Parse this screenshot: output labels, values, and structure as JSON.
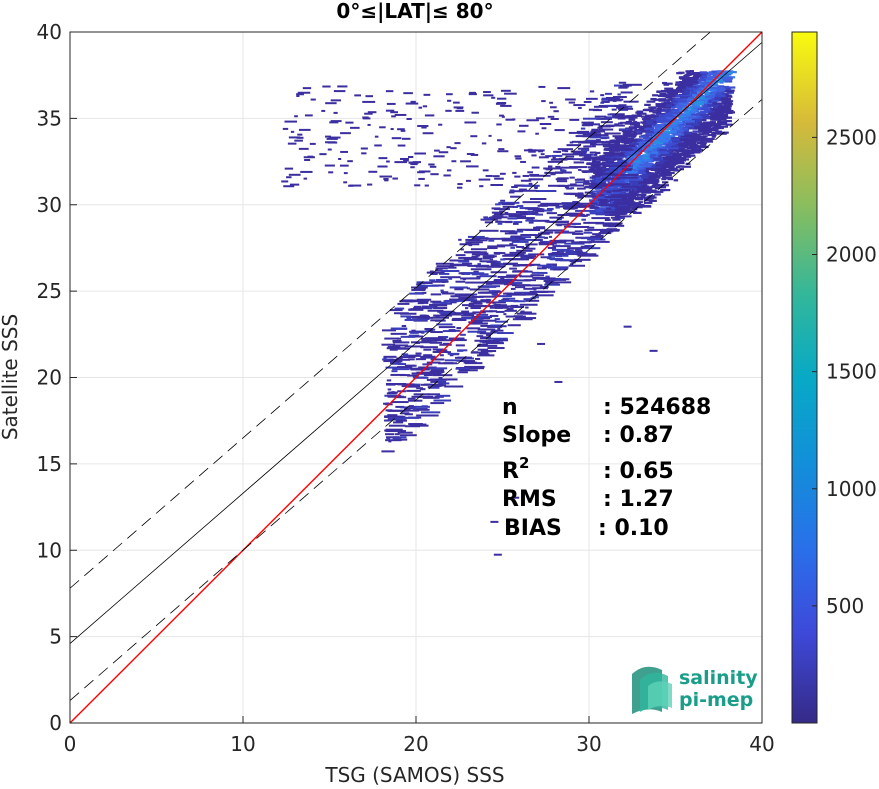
{
  "chart_data": {
    "type": "heatmap",
    "title": "0°≤|LAT|≤ 80°",
    "xlabel": "TSG (SAMOS) SSS",
    "ylabel": "Satellite SSS",
    "xlim": [
      0,
      40
    ],
    "ylim": [
      0,
      40
    ],
    "xticks": [
      0,
      10,
      20,
      30,
      40
    ],
    "yticks": [
      0,
      5,
      10,
      15,
      20,
      25,
      30,
      35,
      40
    ],
    "grid": true,
    "colorbar": {
      "range": [
        0,
        2950
      ],
      "ticks": [
        500,
        1000,
        1500,
        2000,
        2500
      ],
      "colormap": "parula"
    },
    "lines": [
      {
        "name": "identity",
        "slope": 1.0,
        "intercept": 0.0,
        "color": "#ff0000",
        "style": "solid"
      },
      {
        "name": "fit",
        "slope": 0.87,
        "intercept": 4.6,
        "color": "#000000",
        "style": "solid"
      },
      {
        "name": "fit-upper",
        "slope": 0.87,
        "intercept": 7.8,
        "color": "#000000",
        "style": "dashed"
      },
      {
        "name": "fit-lower",
        "slope": 0.87,
        "intercept": 1.3,
        "color": "#000000",
        "style": "dashed"
      }
    ],
    "stats": [
      {
        "label": "n",
        "value": ": 524688"
      },
      {
        "label": "Slope",
        "value": ": 0.87"
      },
      {
        "label": "R",
        "sup": "2",
        "value": ": 0.65"
      },
      {
        "label": "RMS",
        "value": ": 1.27"
      },
      {
        "label": "BIAS",
        "value": ": 0.10"
      }
    ],
    "density_core": {
      "x_range": [
        30,
        38
      ],
      "y_range": [
        29.5,
        37.8
      ]
    }
  },
  "logo": {
    "line1": "salinity",
    "line2": "pi-mep"
  }
}
